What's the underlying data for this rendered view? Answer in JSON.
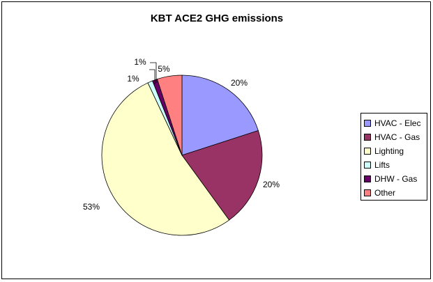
{
  "chart_data": {
    "type": "pie",
    "title": "KBT ACE2 GHG emissions",
    "categories": [
      "HVAC - Elec",
      "HVAC - Gas",
      "Lighting",
      "Lifts",
      "DHW - Gas",
      "Other"
    ],
    "values": [
      20,
      20,
      53,
      1,
      1,
      5
    ],
    "data_labels": [
      "20%",
      "20%",
      "53%",
      "1%",
      "1%",
      "5%"
    ],
    "colors": [
      "#9999ff",
      "#993366",
      "#ffffcc",
      "#ccffff",
      "#660066",
      "#ff8080"
    ],
    "start_angle_deg": 0,
    "direction": "clockwise",
    "legend_position": "right"
  }
}
